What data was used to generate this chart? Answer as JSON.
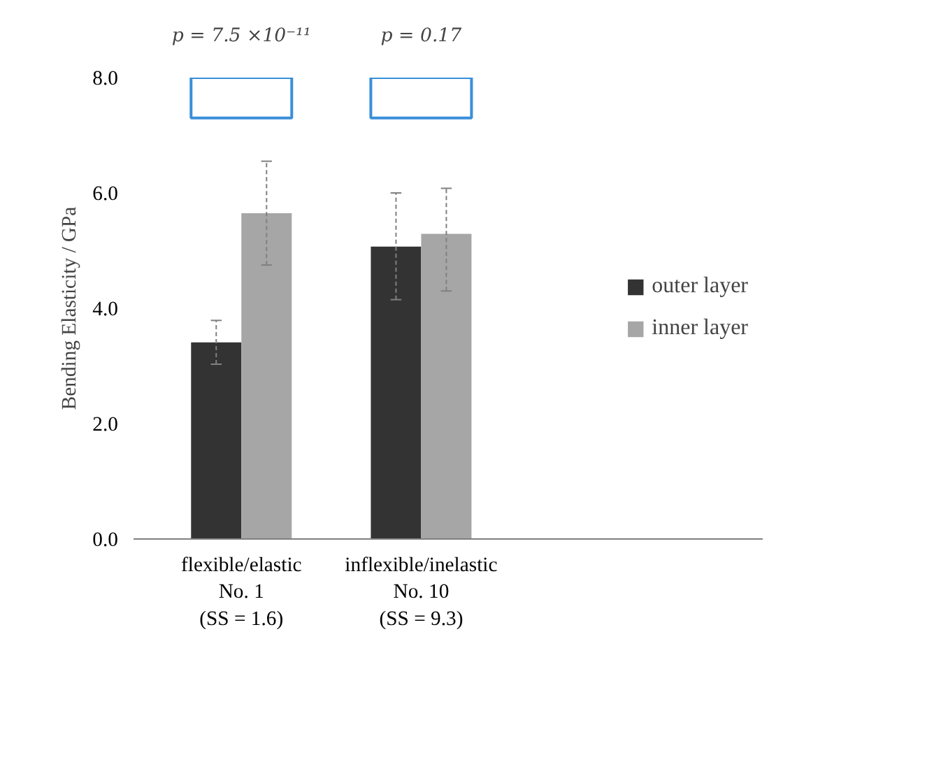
{
  "chart_data": {
    "type": "bar",
    "ylabel": "Bending Elasticity / GPa",
    "categories": [
      "flexible/elastic\nNo. 1\n(SS = 1.6)",
      "inflexible/inelastic\nNo. 10\n(SS = 9.3)"
    ],
    "series": [
      {
        "name": "outer layer",
        "color": "#333333",
        "values": [
          3.41,
          5.07
        ],
        "errors": [
          [
            3.03,
            3.79
          ],
          [
            4.15,
            6.0
          ]
        ]
      },
      {
        "name": "inner layer",
        "color": "#a6a6a6",
        "values": [
          5.65,
          5.29
        ],
        "errors": [
          [
            4.75,
            6.55
          ],
          [
            4.3,
            6.08
          ]
        ]
      }
    ],
    "ylim": [
      0,
      8
    ],
    "yticks": [
      {
        "value": 0,
        "label": "0.0"
      },
      {
        "value": 2,
        "label": "2.0"
      },
      {
        "value": 4,
        "label": "4.0"
      },
      {
        "value": 6,
        "label": "6.0"
      },
      {
        "value": 8,
        "label": "8.0"
      }
    ],
    "annotations": [
      "p = 7.5 ×10⁻¹¹",
      "p = 0.17"
    ],
    "grid": false,
    "legend": "right"
  }
}
